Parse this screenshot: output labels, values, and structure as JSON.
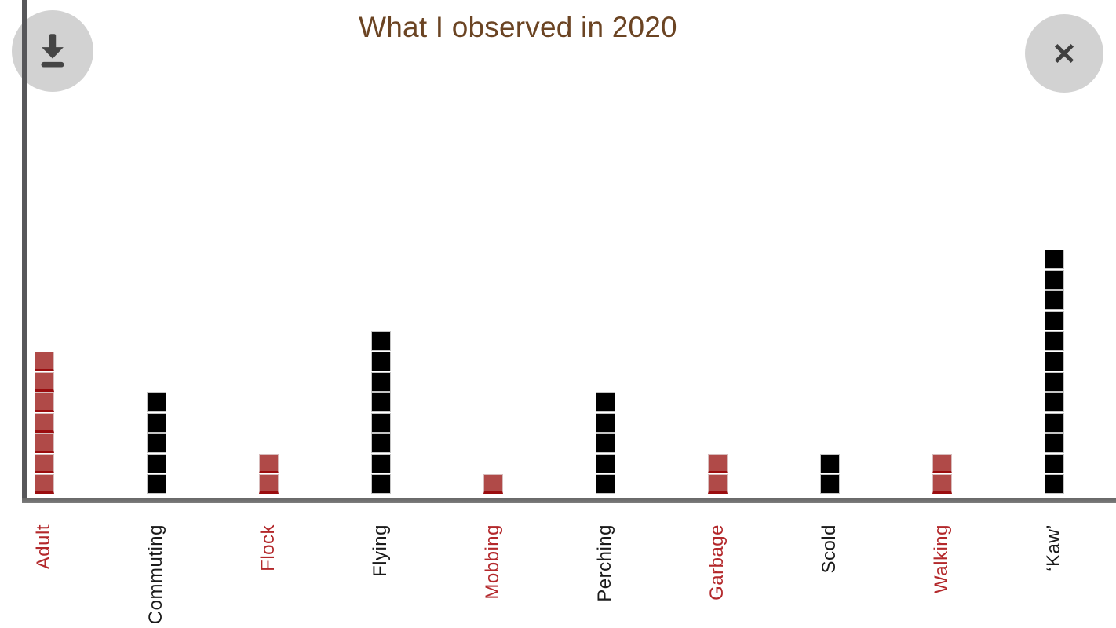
{
  "header": {
    "title": "What I observed in 2020"
  },
  "icons": {
    "download": "download-icon",
    "close": "close-icon"
  },
  "colors": {
    "title_text": "#6b4423",
    "red_square": "#b04a48",
    "red_square_bottom_edge": "#9a0d0f",
    "black_square": "#000000",
    "red_label": "#b3282b",
    "black_label": "#1a1a1a",
    "axis_vertical": "#57575a",
    "axis_horizontal": "#6e6e6e",
    "button_background": "#d2d2d2",
    "button_glyph": "#454545"
  },
  "chart_data": {
    "type": "bar",
    "subtype": "pictograph-unit-chart",
    "title": "What I observed in 2020",
    "categories": [
      "Adult",
      "Commuting",
      "Flock",
      "Flying",
      "Mobbing",
      "Perching",
      "Garbage",
      "Scold",
      "Walking",
      "‘Kaw’"
    ],
    "values": [
      7,
      5,
      2,
      8,
      1,
      5,
      2,
      2,
      2,
      12
    ],
    "square_colors": [
      "#b04a48",
      "#000000",
      "#b04a48",
      "#000000",
      "#b04a48",
      "#000000",
      "#b04a48",
      "#000000",
      "#b04a48",
      "#000000"
    ],
    "label_colors": [
      "#b3282b",
      "#1a1a1a",
      "#b3282b",
      "#1a1a1a",
      "#b3282b",
      "#1a1a1a",
      "#b3282b",
      "#1a1a1a",
      "#b3282b",
      "#1a1a1a"
    ],
    "xlabel": "",
    "ylabel": "",
    "ylim": [
      0,
      12
    ],
    "grid": false,
    "legend": false
  }
}
